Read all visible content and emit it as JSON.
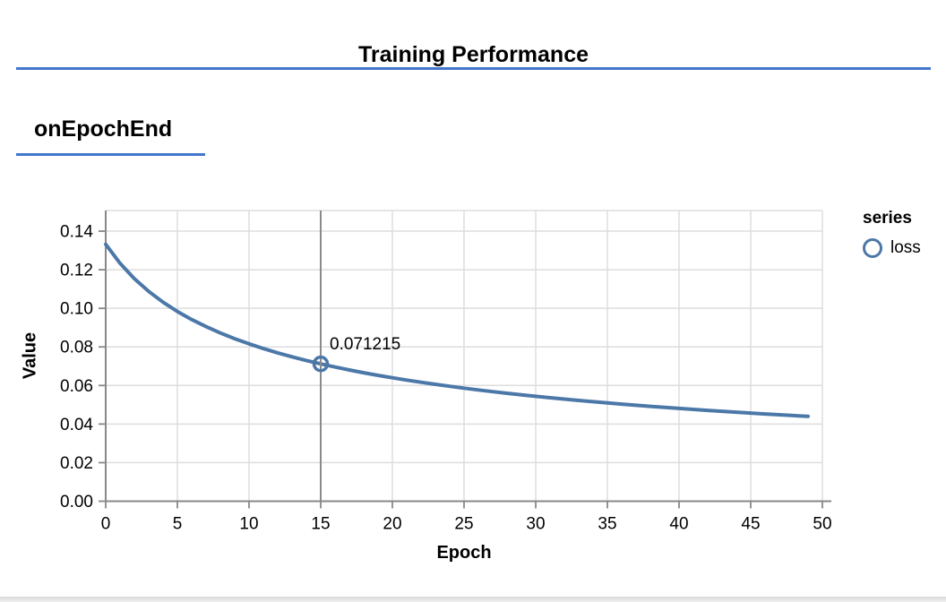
{
  "header": {
    "title": "Training Performance"
  },
  "section": {
    "tab_label": "onEpochEnd"
  },
  "theme": {
    "accent": "#4277cc",
    "axis_color": "#888888",
    "grid_color": "#dddddd",
    "rule_color": "#8a8a8a",
    "text_color": "#000000"
  },
  "chart_data": {
    "type": "line",
    "title": "Training Performance",
    "xlabel": "Epoch",
    "ylabel": "Value",
    "xlim": [
      0,
      50
    ],
    "ylim": [
      0,
      0.1507
    ],
    "grid": true,
    "x_ticks": [
      "0",
      "5",
      "10",
      "15",
      "20",
      "25",
      "30",
      "35",
      "40",
      "45",
      "50"
    ],
    "y_ticks": [
      "0.00",
      "0.02",
      "0.04",
      "0.06",
      "0.08",
      "0.10",
      "0.12",
      "0.14"
    ],
    "legend": {
      "title": "series",
      "position": "right",
      "entries": [
        {
          "label": "loss",
          "color": "#4c78a8",
          "marker": "open-circle"
        }
      ]
    },
    "series": [
      {
        "name": "loss",
        "color": "#4c78a8",
        "x_start": 0,
        "x_step": 1,
        "values": [
          0.133211,
          0.12333,
          0.115364,
          0.108767,
          0.103186,
          0.098383,
          0.094194,
          0.090499,
          0.087211,
          0.08425,
          0.081575,
          0.079139,
          0.07691,
          0.074859,
          0.072963,
          0.071215,
          0.069567,
          0.068038,
          0.066606,
          0.06526,
          0.063993,
          0.062796,
          0.061665,
          0.060592,
          0.059574,
          0.058605,
          0.057682,
          0.056801,
          0.05596,
          0.055154,
          0.054383,
          0.053644,
          0.052933,
          0.05225,
          0.051593,
          0.05096,
          0.050349,
          0.04976,
          0.049192,
          0.048642,
          0.048111,
          0.047596,
          0.047097,
          0.046614,
          0.046146,
          0.045691,
          0.04525,
          0.044821,
          0.044404,
          0.043998
        ]
      }
    ],
    "highlight": {
      "x": 15,
      "value": 0.071215,
      "label": "0.071215"
    }
  }
}
